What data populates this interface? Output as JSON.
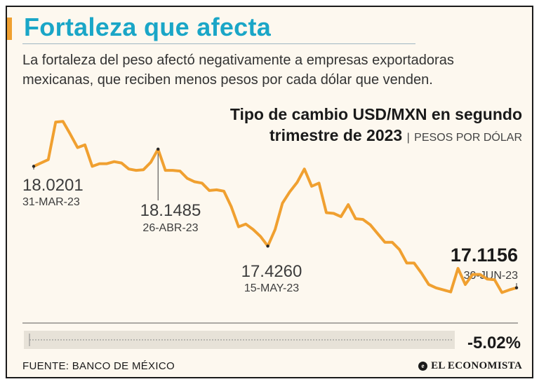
{
  "header": {
    "title": "Fortaleza que afecta",
    "description": "La fortaleza del peso afectó negativamente a empresas exportadoras mexicanas, que reciben menos pesos por cada dólar que venden."
  },
  "chart_title": {
    "line1": "Tipo de cambio USD/MXN en segundo",
    "line2": "trimestre de 2023",
    "separator": "|",
    "unit": "PESOS POR DÓLAR"
  },
  "chart_data": {
    "type": "line",
    "title": "Tipo de cambio USD/MXN en segundo trimestre de 2023",
    "ylabel": "PESOS POR DÓLAR",
    "ylim": [
      16.9,
      18.45
    ],
    "grid": false,
    "series": [
      {
        "name": "USD/MXN",
        "color": "#f0a030",
        "values": [
          18.0201,
          18.045,
          18.07,
          18.35,
          18.355,
          18.26,
          18.16,
          18.18,
          18.02,
          18.04,
          18.04,
          18.055,
          18.045,
          18.0,
          17.99,
          17.995,
          18.05,
          18.1485,
          17.99,
          17.99,
          17.985,
          17.93,
          17.905,
          17.895,
          17.84,
          17.845,
          17.835,
          17.72,
          17.57,
          17.59,
          17.55,
          17.4981,
          17.426,
          17.55,
          17.745,
          17.83,
          17.9,
          18.0,
          17.8715,
          17.895,
          17.675,
          17.67,
          17.645,
          17.735,
          17.63,
          17.625,
          17.585,
          17.52,
          17.455,
          17.455,
          17.4,
          17.3,
          17.3,
          17.225,
          17.14,
          17.115,
          17.1,
          17.085,
          17.26,
          17.14,
          17.215,
          17.215,
          17.18,
          17.175,
          17.08,
          17.1,
          17.1156
        ]
      }
    ],
    "annotations": [
      {
        "index": 0,
        "value": "18.0201",
        "date": "31-MAR-23"
      },
      {
        "index": 17,
        "value": "18.1485",
        "date": "26-ABR-23"
      },
      {
        "index": 32,
        "value": "17.4260",
        "date": "15-MAY-23"
      },
      {
        "index": 66,
        "value": "17.1156",
        "date": "30-JUN-23"
      }
    ],
    "change_label": "-5.02%"
  },
  "footer": {
    "source": "FUENTE: BANCO DE MÉXICO",
    "brand": "EL ECONOMISTA",
    "brand_mark": "e"
  },
  "colors": {
    "line": "#f0a030",
    "title": "#1aa6c7",
    "background": "#fdf8ef",
    "text": "#1a1a1a"
  }
}
